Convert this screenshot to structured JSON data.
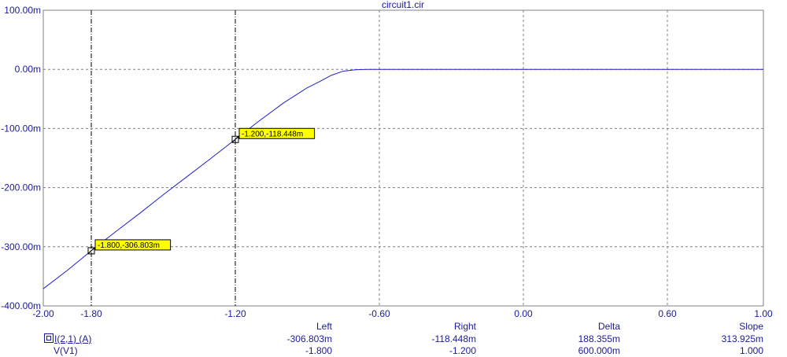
{
  "chart_data": {
    "type": "line",
    "title": "circuit1.cir",
    "xlim": [
      -2.0,
      1.0
    ],
    "ylim": [
      -400,
      100
    ],
    "x_ticks": [
      "-2.00",
      "-1.80",
      "-1.20",
      "-0.60",
      "0.00",
      "0.60",
      "1.00"
    ],
    "x_tick_values": [
      -2.0,
      -1.8,
      -1.2,
      -0.6,
      0.0,
      0.6,
      1.0
    ],
    "y_ticks": [
      "100.00m",
      "0.00m",
      "-100.00m",
      "-200.00m",
      "-300.00m",
      "-400.00m"
    ],
    "y_tick_values": [
      100,
      0,
      -100,
      -200,
      -300,
      -400
    ],
    "grid": true,
    "series": [
      {
        "name": "I(2,1) (A)",
        "x": [
          -2.0,
          -1.9,
          -1.8,
          -1.7,
          -1.6,
          -1.5,
          -1.4,
          -1.3,
          -1.2,
          -1.1,
          -1.0,
          -0.95,
          -0.9,
          -0.85,
          -0.8,
          -0.75,
          -0.7,
          -0.68,
          -0.65,
          -0.62,
          -0.6,
          -0.5,
          0.0,
          0.5,
          1.0
        ],
        "y": [
          -371,
          -340,
          -306.803,
          -275,
          -244,
          -212,
          -181,
          -150,
          -118.448,
          -87,
          -57,
          -44,
          -31,
          -21,
          -10,
          -3,
          -0.8,
          -0.4,
          -0.1,
          0,
          0,
          0,
          0,
          0,
          0
        ]
      }
    ],
    "markers": [
      {
        "x": -1.8,
        "y": -306.803,
        "label": "-1.800,-306.803m"
      },
      {
        "x": -1.2,
        "y": -118.448,
        "label": "-1.200,-118.448m"
      }
    ],
    "cursors": [
      -1.8,
      -1.2
    ]
  },
  "readout": {
    "headers": {
      "left": "Left",
      "right": "Right",
      "delta": "Delta",
      "slope": "Slope"
    },
    "rows": [
      {
        "name": "I(2,1) (A)",
        "left": "-306.803m",
        "right": "-118.448m",
        "delta": "188.355m",
        "slope": "313.925m"
      },
      {
        "name": "V(V1)",
        "left": "-1.800",
        "right": "-1.200",
        "delta": "600.000m",
        "slope": "1.000"
      }
    ]
  },
  "colors": {
    "axis_text": "#1a1a99",
    "trace": "#1f1fcc",
    "grid": "#808080",
    "tag_bg": "#ffff00"
  }
}
